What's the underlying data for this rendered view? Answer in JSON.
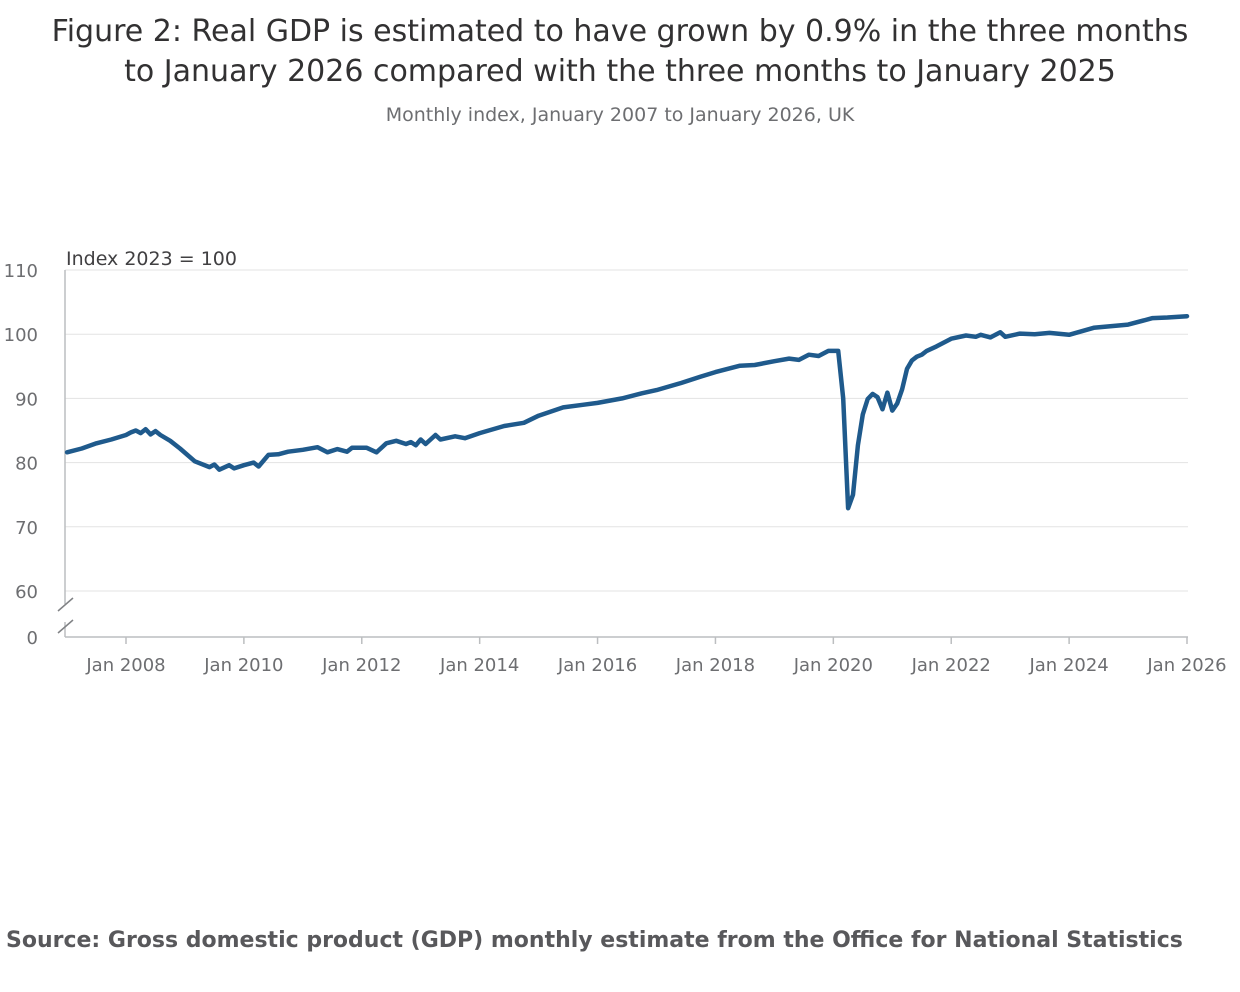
{
  "title_line1": "Figure 2: Real GDP is estimated to have grown by 0.9% in the three months",
  "title_line2": "to January 2026 compared with the three months to January 2025",
  "subtitle": "Monthly index, January 2007 to January 2026, UK",
  "source": "Source: Gross domestic product (GDP) monthly estimate from the Office for National Statistics",
  "colors": {
    "line": "#1f5a8c",
    "grid": "#e3e3e3",
    "axis": "#bcbec0",
    "text": "#414042"
  },
  "chart_data": {
    "type": "line",
    "ylabel": "Index 2023 = 100",
    "y_ticks": [
      "110",
      "100",
      "90",
      "80",
      "70",
      "60",
      "0"
    ],
    "y_tick_values": [
      110,
      100,
      90,
      80,
      70,
      60,
      0
    ],
    "ylim": [
      0,
      110
    ],
    "y_axis_break": true,
    "x_ticks": [
      "Jan 2008",
      "Jan 2010",
      "Jan 2012",
      "Jan 2014",
      "Jan 2016",
      "Jan 2018",
      "Jan 2020",
      "Jan 2022",
      "Jan 2024",
      "Jan 2026"
    ],
    "x_tick_dates": [
      "2008-01",
      "2010-01",
      "2012-01",
      "2014-01",
      "2016-01",
      "2018-01",
      "2020-01",
      "2022-01",
      "2024-01",
      "2026-01"
    ],
    "grid": true,
    "legend": "none",
    "series": [
      {
        "points": [
          [
            "2007-01",
            81.6
          ],
          [
            "2007-04",
            82.2
          ],
          [
            "2007-07",
            83.0
          ],
          [
            "2007-10",
            83.6
          ],
          [
            "2008-01",
            84.3
          ],
          [
            "2008-02",
            84.7
          ],
          [
            "2008-03",
            85.0
          ],
          [
            "2008-04",
            84.6
          ],
          [
            "2008-05",
            85.2
          ],
          [
            "2008-06",
            84.4
          ],
          [
            "2008-07",
            84.9
          ],
          [
            "2008-08",
            84.3
          ],
          [
            "2008-10",
            83.4
          ],
          [
            "2008-12",
            82.2
          ],
          [
            "2009-03",
            80.2
          ],
          [
            "2009-06",
            79.3
          ],
          [
            "2009-07",
            79.7
          ],
          [
            "2009-08",
            78.9
          ],
          [
            "2009-10",
            79.6
          ],
          [
            "2009-11",
            79.1
          ],
          [
            "2010-01",
            79.6
          ],
          [
            "2010-03",
            80.0
          ],
          [
            "2010-04",
            79.4
          ],
          [
            "2010-06",
            81.2
          ],
          [
            "2010-08",
            81.3
          ],
          [
            "2010-10",
            81.7
          ],
          [
            "2011-01",
            82.0
          ],
          [
            "2011-04",
            82.4
          ],
          [
            "2011-06",
            81.6
          ],
          [
            "2011-08",
            82.1
          ],
          [
            "2011-10",
            81.7
          ],
          [
            "2011-11",
            82.3
          ],
          [
            "2012-02",
            82.3
          ],
          [
            "2012-04",
            81.6
          ],
          [
            "2012-06",
            83.0
          ],
          [
            "2012-08",
            83.4
          ],
          [
            "2012-10",
            82.9
          ],
          [
            "2012-11",
            83.2
          ],
          [
            "2012-12",
            82.7
          ],
          [
            "2013-01",
            83.6
          ],
          [
            "2013-02",
            82.9
          ],
          [
            "2013-04",
            84.3
          ],
          [
            "2013-05",
            83.6
          ],
          [
            "2013-08",
            84.1
          ],
          [
            "2013-10",
            83.8
          ],
          [
            "2014-01",
            84.6
          ],
          [
            "2014-06",
            85.7
          ],
          [
            "2014-10",
            86.2
          ],
          [
            "2015-01",
            87.3
          ],
          [
            "2015-06",
            88.6
          ],
          [
            "2015-10",
            89.0
          ],
          [
            "2016-01",
            89.3
          ],
          [
            "2016-06",
            90.0
          ],
          [
            "2016-10",
            90.8
          ],
          [
            "2017-01",
            91.3
          ],
          [
            "2017-06",
            92.4
          ],
          [
            "2017-10",
            93.4
          ],
          [
            "2018-01",
            94.1
          ],
          [
            "2018-06",
            95.1
          ],
          [
            "2018-09",
            95.2
          ],
          [
            "2019-01",
            95.8
          ],
          [
            "2019-04",
            96.2
          ],
          [
            "2019-06",
            96.0
          ],
          [
            "2019-08",
            96.8
          ],
          [
            "2019-10",
            96.6
          ],
          [
            "2019-12",
            97.4
          ],
          [
            "2020-02",
            97.4
          ],
          [
            "2020-03",
            90.0
          ],
          [
            "2020-04",
            72.9
          ],
          [
            "2020-05",
            75.0
          ],
          [
            "2020-06",
            82.7
          ],
          [
            "2020-07",
            87.5
          ],
          [
            "2020-08",
            89.9
          ],
          [
            "2020-09",
            90.7
          ],
          [
            "2020-10",
            90.2
          ],
          [
            "2020-11",
            88.3
          ],
          [
            "2020-12",
            90.9
          ],
          [
            "2021-01",
            88.1
          ],
          [
            "2021-02",
            89.2
          ],
          [
            "2021-03",
            91.4
          ],
          [
            "2021-04",
            94.6
          ],
          [
            "2021-05",
            95.9
          ],
          [
            "2021-06",
            96.5
          ],
          [
            "2021-07",
            96.8
          ],
          [
            "2021-08",
            97.4
          ],
          [
            "2021-10",
            98.1
          ],
          [
            "2022-01",
            99.3
          ],
          [
            "2022-04",
            99.8
          ],
          [
            "2022-06",
            99.6
          ],
          [
            "2022-07",
            99.9
          ],
          [
            "2022-09",
            99.5
          ],
          [
            "2022-11",
            100.3
          ],
          [
            "2022-12",
            99.6
          ],
          [
            "2023-03",
            100.1
          ],
          [
            "2023-06",
            100.0
          ],
          [
            "2023-09",
            100.2
          ],
          [
            "2024-01",
            99.9
          ],
          [
            "2024-06",
            101.0
          ],
          [
            "2025-01",
            101.5
          ],
          [
            "2025-06",
            102.5
          ],
          [
            "2025-09",
            102.6
          ],
          [
            "2026-01",
            102.8
          ]
        ]
      }
    ]
  }
}
